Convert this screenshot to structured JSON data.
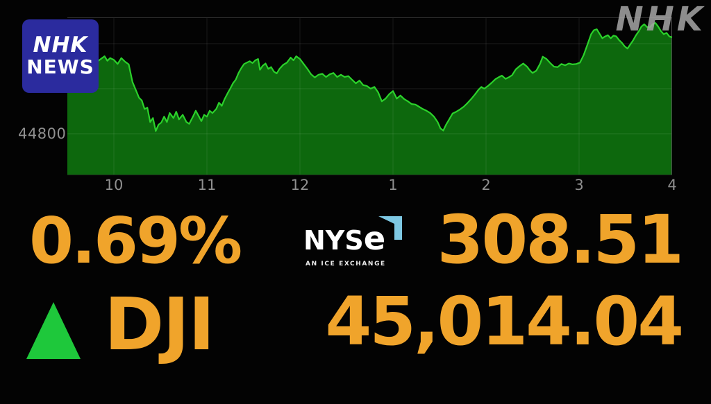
{
  "branding": {
    "logo_line1": "NHK",
    "logo_line2": "NEWS",
    "watermark": "NHK"
  },
  "ticker": {
    "change_percent": "0.69%",
    "direction": "up",
    "symbol": "DJI",
    "change_points": "308.51",
    "last_price": "45,014.04"
  },
  "exchange": {
    "name": "NYSE",
    "name_display_prefix": "NYS",
    "name_display_e": "e",
    "tagline": "AN ICE EXCHANGE"
  },
  "colors": {
    "amber": "#F0A42B",
    "chart_line": "#2BD12B",
    "chart_fill": "#0D680D",
    "up_triangle": "#1EC83B",
    "nhk_blue": "#2B2B9E",
    "nyse_blue": "#7EC8E3",
    "axis_label": "#8F8F8F",
    "watermark_gray": "#A6A6A6",
    "background": "#030303"
  },
  "chart_data": {
    "type": "area",
    "title": "DJI intraday price",
    "symbol": "DJI",
    "x_axis": {
      "unit": "hour of trading day (9:30-16:00)",
      "range": [
        9.5,
        16
      ],
      "tick_hours": [
        10,
        11,
        12,
        13,
        14,
        15,
        16
      ],
      "tick_labels": [
        "10",
        "11",
        "12",
        "1",
        "2",
        "3",
        "4"
      ],
      "grid": true
    },
    "y_axis": {
      "range": [
        44708,
        45058
      ],
      "gridline_prices": [
        44800,
        44900,
        45000
      ],
      "visible_tick_label": "44800",
      "visible_tick_price": 44800,
      "grid": true
    },
    "legend": "none",
    "series": [
      {
        "name": "DJI",
        "points": [
          [
            9.5,
            44920
          ],
          [
            9.55,
            44940
          ],
          [
            9.6,
            44958
          ],
          [
            9.64,
            44950
          ],
          [
            9.69,
            44965
          ],
          [
            9.73,
            44958
          ],
          [
            9.78,
            44968
          ],
          [
            9.82,
            44960
          ],
          [
            9.86,
            44966
          ],
          [
            9.9,
            44972
          ],
          [
            9.93,
            44962
          ],
          [
            9.96,
            44968
          ],
          [
            10.0,
            44964
          ],
          [
            10.04,
            44955
          ],
          [
            10.08,
            44968
          ],
          [
            10.12,
            44960
          ],
          [
            10.16,
            44954
          ],
          [
            10.2,
            44915
          ],
          [
            10.24,
            44895
          ],
          [
            10.27,
            44880
          ],
          [
            10.3,
            44874
          ],
          [
            10.33,
            44855
          ],
          [
            10.36,
            44858
          ],
          [
            10.39,
            44826
          ],
          [
            10.42,
            44835
          ],
          [
            10.45,
            44806
          ],
          [
            10.48,
            44820
          ],
          [
            10.51,
            44825
          ],
          [
            10.54,
            44838
          ],
          [
            10.57,
            44826
          ],
          [
            10.6,
            44846
          ],
          [
            10.64,
            44835
          ],
          [
            10.67,
            44849
          ],
          [
            10.7,
            44832
          ],
          [
            10.74,
            44842
          ],
          [
            10.78,
            44826
          ],
          [
            10.81,
            44822
          ],
          [
            10.85,
            44838
          ],
          [
            10.88,
            44851
          ],
          [
            10.91,
            44840
          ],
          [
            10.94,
            44828
          ],
          [
            10.97,
            44842
          ],
          [
            11.0,
            44838
          ],
          [
            11.03,
            44851
          ],
          [
            11.06,
            44846
          ],
          [
            11.1,
            44855
          ],
          [
            11.13,
            44869
          ],
          [
            11.16,
            44862
          ],
          [
            11.19,
            44877
          ],
          [
            11.22,
            44889
          ],
          [
            11.25,
            44900
          ],
          [
            11.28,
            44912
          ],
          [
            11.31,
            44920
          ],
          [
            11.34,
            44935
          ],
          [
            11.37,
            44946
          ],
          [
            11.4,
            44955
          ],
          [
            11.43,
            44958
          ],
          [
            11.46,
            44961
          ],
          [
            11.49,
            44957
          ],
          [
            11.52,
            44963
          ],
          [
            11.55,
            44966
          ],
          [
            11.57,
            44942
          ],
          [
            11.6,
            44951
          ],
          [
            11.63,
            44956
          ],
          [
            11.66,
            44944
          ],
          [
            11.69,
            44948
          ],
          [
            11.72,
            44938
          ],
          [
            11.75,
            44934
          ],
          [
            11.78,
            44944
          ],
          [
            11.82,
            44953
          ],
          [
            11.86,
            44958
          ],
          [
            11.9,
            44969
          ],
          [
            11.93,
            44963
          ],
          [
            11.96,
            44972
          ],
          [
            12.0,
            44966
          ],
          [
            12.04,
            44955
          ],
          [
            12.08,
            44944
          ],
          [
            12.12,
            44932
          ],
          [
            12.16,
            44925
          ],
          [
            12.2,
            44931
          ],
          [
            12.24,
            44933
          ],
          [
            12.28,
            44926
          ],
          [
            12.32,
            44932
          ],
          [
            12.36,
            44935
          ],
          [
            12.4,
            44926
          ],
          [
            12.44,
            44931
          ],
          [
            12.48,
            44926
          ],
          [
            12.52,
            44928
          ],
          [
            12.56,
            44920
          ],
          [
            12.6,
            44912
          ],
          [
            12.64,
            44918
          ],
          [
            12.68,
            44908
          ],
          [
            12.72,
            44906
          ],
          [
            12.76,
            44900
          ],
          [
            12.8,
            44904
          ],
          [
            12.84,
            44892
          ],
          [
            12.88,
            44872
          ],
          [
            12.92,
            44878
          ],
          [
            12.96,
            44888
          ],
          [
            13.0,
            44895
          ],
          [
            13.04,
            44878
          ],
          [
            13.08,
            44885
          ],
          [
            13.12,
            44877
          ],
          [
            13.16,
            44872
          ],
          [
            13.2,
            44866
          ],
          [
            13.24,
            44865
          ],
          [
            13.28,
            44860
          ],
          [
            13.32,
            44855
          ],
          [
            13.36,
            44851
          ],
          [
            13.4,
            44846
          ],
          [
            13.44,
            44838
          ],
          [
            13.48,
            44826
          ],
          [
            13.51,
            44812
          ],
          [
            13.54,
            44807
          ],
          [
            13.57,
            44820
          ],
          [
            13.61,
            44834
          ],
          [
            13.64,
            44845
          ],
          [
            13.68,
            44849
          ],
          [
            13.72,
            44854
          ],
          [
            13.76,
            44860
          ],
          [
            13.8,
            44868
          ],
          [
            13.84,
            44877
          ],
          [
            13.88,
            44887
          ],
          [
            13.92,
            44898
          ],
          [
            13.95,
            44904
          ],
          [
            13.98,
            44900
          ],
          [
            14.02,
            44906
          ],
          [
            14.06,
            44913
          ],
          [
            14.1,
            44921
          ],
          [
            14.14,
            44926
          ],
          [
            14.17,
            44929
          ],
          [
            14.21,
            44922
          ],
          [
            14.25,
            44926
          ],
          [
            14.28,
            44930
          ],
          [
            14.32,
            44943
          ],
          [
            14.36,
            44950
          ],
          [
            14.4,
            44956
          ],
          [
            14.44,
            44949
          ],
          [
            14.47,
            44941
          ],
          [
            14.5,
            44935
          ],
          [
            14.54,
            44940
          ],
          [
            14.58,
            44955
          ],
          [
            14.61,
            44971
          ],
          [
            14.65,
            44966
          ],
          [
            14.69,
            44957
          ],
          [
            14.73,
            44949
          ],
          [
            14.77,
            44948
          ],
          [
            14.81,
            44955
          ],
          [
            14.85,
            44952
          ],
          [
            14.89,
            44956
          ],
          [
            14.93,
            44954
          ],
          [
            14.97,
            44955
          ],
          [
            15.01,
            44958
          ],
          [
            15.05,
            44975
          ],
          [
            15.09,
            44998
          ],
          [
            15.13,
            45021
          ],
          [
            15.16,
            45030
          ],
          [
            15.19,
            45032
          ],
          [
            15.22,
            45022
          ],
          [
            15.25,
            45012
          ],
          [
            15.28,
            45016
          ],
          [
            15.31,
            45019
          ],
          [
            15.34,
            45012
          ],
          [
            15.37,
            45018
          ],
          [
            15.4,
            45016
          ],
          [
            15.43,
            45008
          ],
          [
            15.46,
            45002
          ],
          [
            15.49,
            44994
          ],
          [
            15.52,
            44989
          ],
          [
            15.55,
            44998
          ],
          [
            15.58,
            45007
          ],
          [
            15.61,
            45018
          ],
          [
            15.64,
            45027
          ],
          [
            15.67,
            45038
          ],
          [
            15.7,
            45043
          ],
          [
            15.73,
            45037
          ],
          [
            15.76,
            45036
          ],
          [
            15.79,
            45043
          ],
          [
            15.82,
            45046
          ],
          [
            15.85,
            45038
          ],
          [
            15.88,
            45028
          ],
          [
            15.91,
            45021
          ],
          [
            15.94,
            45024
          ],
          [
            15.97,
            45016
          ],
          [
            16.0,
            45014
          ]
        ]
      }
    ]
  }
}
